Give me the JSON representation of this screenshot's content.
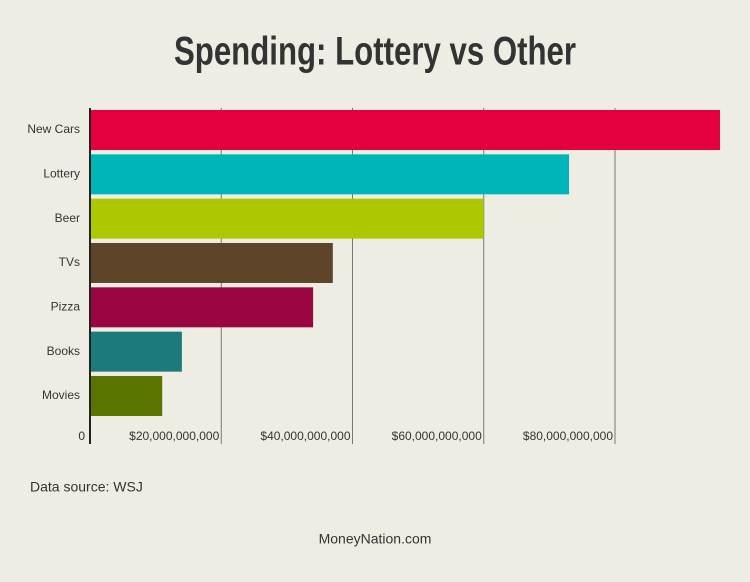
{
  "chart_data": {
    "type": "barh",
    "title": "Spending: Lottery vs Other",
    "categories": [
      "New Cars",
      "Lottery",
      "Beer",
      "TVs",
      "Pizza",
      "Books",
      "Movies"
    ],
    "values": [
      96000000000,
      73000000000,
      60000000000,
      37000000000,
      34000000000,
      14000000000,
      11000000000
    ],
    "colors": [
      "#e4003f",
      "#00b5b8",
      "#adc800",
      "#5e4428",
      "#9c0640",
      "#1d7a7a",
      "#5a7400"
    ],
    "xlim": [
      0,
      96000000000
    ],
    "xticks": [
      0,
      {
        "value": 20000000000,
        "label": "$20,000,000,000"
      },
      {
        "value": 40000000000,
        "label": "$40,000,000,000"
      },
      {
        "value": 60000000000,
        "label": "$60,000,000,000"
      },
      {
        "value": 80000000000,
        "label": "$80,000,000,000"
      }
    ],
    "grid": true,
    "source": "Data source: WSJ",
    "footer": "MoneyNation.com"
  }
}
